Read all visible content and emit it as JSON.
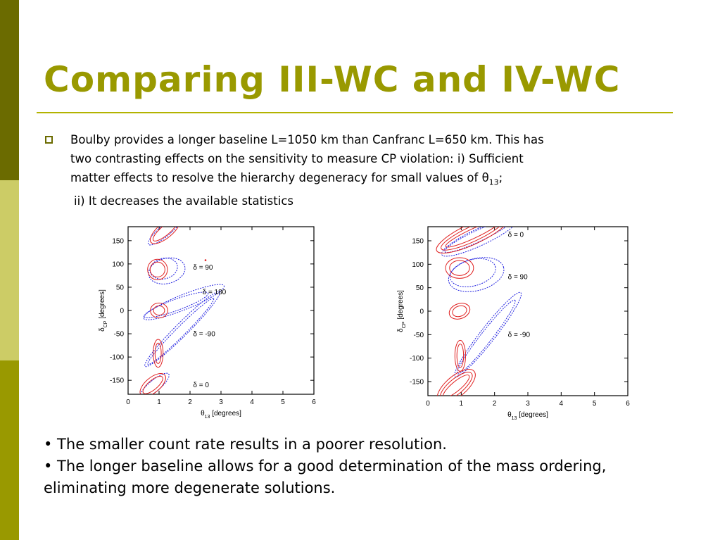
{
  "slide": {
    "title": "Comparing III-WC and IV-WC",
    "bullet": {
      "line1": "Boulby provides a longer baseline L=1050 km than Canfranc L=650 km. This has",
      "line2": "two contrasting effects on the sensitivity to measure CP violation: i) Sufficient",
      "line3_main": "matter effects to resolve the hierarchy degeneracy for small values of θ",
      "line3_sub": "13",
      "line3_end": ";",
      "line4": "ii) It decreases the available statistics"
    },
    "notes": [
      "• The smaller count rate results in a poorer resolution.",
      "•  The longer baseline allows for a good determination of the mass ordering,",
      "eliminating more degenerate solutions."
    ],
    "colors": {
      "accent": "#999900",
      "sidebar_dark": "#6b6b00",
      "sidebar_light": "#cccc66",
      "contour_red": "#e02020",
      "contour_blue": "#2020e0"
    }
  },
  "chart_data": [
    {
      "type": "contour",
      "xlabel_main": "θ",
      "xlabel_sub": "13",
      "xlabel_unit": " [degrees]",
      "ylabel_main": "δ",
      "ylabel_sub": "CP",
      "ylabel_unit": " [degrees]",
      "xlim": [
        0,
        6
      ],
      "ylim": [
        -180,
        180
      ],
      "xticks": [
        0,
        1,
        2,
        3,
        4,
        5,
        6
      ],
      "yticks": [
        150,
        100,
        50,
        0,
        -50,
        -100,
        -150
      ],
      "annotations": [
        {
          "text": "δ = 90",
          "x": 2.1,
          "y": 88
        },
        {
          "text": "δ = 180",
          "x": 2.4,
          "y": 35
        },
        {
          "text": "δ = -90",
          "x": 2.1,
          "y": -55
        },
        {
          "text": "δ = 0",
          "x": 2.1,
          "y": -165
        }
      ],
      "red_contours": [
        {
          "cx": 0.95,
          "cy": 88,
          "rx": 0.24,
          "ry": 16,
          "rot": 0
        },
        {
          "cx": 0.95,
          "cy": 88,
          "rx": 0.32,
          "ry": 22,
          "rot": 0
        },
        {
          "cx": 1.0,
          "cy": 0,
          "rx": 0.18,
          "ry": 10,
          "rot": 0
        },
        {
          "cx": 1.0,
          "cy": 0,
          "rx": 0.28,
          "ry": 16,
          "rot": 0
        },
        {
          "cx": 0.97,
          "cy": -92,
          "rx": 0.1,
          "ry": 22,
          "rot": 0
        },
        {
          "cx": 0.97,
          "cy": -92,
          "rx": 0.16,
          "ry": 30,
          "rot": 0
        },
        {
          "cx": 1.2,
          "cy": 172,
          "rx": 0.5,
          "ry": 10,
          "rot": -40
        },
        {
          "cx": 1.2,
          "cy": 172,
          "rx": 0.6,
          "ry": 16,
          "rot": -40
        },
        {
          "cx": 0.8,
          "cy": -160,
          "rx": 0.4,
          "ry": 10,
          "rot": -40
        },
        {
          "cx": 0.8,
          "cy": -160,
          "rx": 0.5,
          "ry": 16,
          "rot": -40
        }
      ],
      "blue_contours": [
        {
          "cx": 1.15,
          "cy": 90,
          "rx": 0.45,
          "ry": 22,
          "rot": -15
        },
        {
          "cx": 1.25,
          "cy": 85,
          "rx": 0.6,
          "ry": 27,
          "rot": -15
        },
        {
          "cx": 1.55,
          "cy": 12,
          "rx": 1.1,
          "ry": 12,
          "rot": -20
        },
        {
          "cx": 1.8,
          "cy": 18,
          "rx": 1.4,
          "ry": 16,
          "rot": -22
        },
        {
          "cx": 1.7,
          "cy": -45,
          "rx": 1.5,
          "ry": 10,
          "rot": -45
        },
        {
          "cx": 1.75,
          "cy": -40,
          "rx": 1.7,
          "ry": 14,
          "rot": -45
        },
        {
          "cx": 1.2,
          "cy": 172,
          "rx": 0.7,
          "ry": 12,
          "rot": -40
        },
        {
          "cx": 0.85,
          "cy": -162,
          "rx": 0.6,
          "ry": 12,
          "rot": -40
        }
      ],
      "markers": [
        {
          "x": 2.5,
          "y": 108
        }
      ]
    },
    {
      "type": "contour",
      "xlabel_main": "θ",
      "xlabel_sub": "13",
      "xlabel_unit": " [degrees]",
      "ylabel_main": "δ",
      "ylabel_sub": "CP",
      "ylabel_unit": " [degrees]",
      "xlim": [
        0,
        6
      ],
      "ylim": [
        -180,
        180
      ],
      "xticks": [
        0,
        1,
        2,
        3,
        4,
        5,
        6
      ],
      "yticks": [
        150,
        100,
        50,
        0,
        -50,
        -100,
        -150
      ],
      "annotations": [
        {
          "text": "δ = 0",
          "x": 2.4,
          "y": 158
        },
        {
          "text": "δ = 90",
          "x": 2.4,
          "y": 68
        },
        {
          "text": "δ = -90",
          "x": 2.4,
          "y": -55
        }
      ],
      "red_contours": [
        {
          "cx": 1.35,
          "cy": 165,
          "rx": 0.9,
          "ry": 10,
          "rot": -25
        },
        {
          "cx": 1.35,
          "cy": 165,
          "rx": 1.05,
          "ry": 16,
          "rot": -25
        },
        {
          "cx": 1.35,
          "cy": 165,
          "rx": 1.2,
          "ry": 22,
          "rot": -25
        },
        {
          "cx": 0.95,
          "cy": 92,
          "rx": 0.3,
          "ry": 16,
          "rot": 0
        },
        {
          "cx": 0.95,
          "cy": 92,
          "rx": 0.42,
          "ry": 22,
          "rot": 0
        },
        {
          "cx": 0.95,
          "cy": 0,
          "rx": 0.22,
          "ry": 11,
          "rot": -20
        },
        {
          "cx": 0.95,
          "cy": 0,
          "rx": 0.32,
          "ry": 16,
          "rot": -20
        },
        {
          "cx": 0.97,
          "cy": -95,
          "rx": 0.1,
          "ry": 25,
          "rot": 0
        },
        {
          "cx": 0.97,
          "cy": -95,
          "rx": 0.16,
          "ry": 33,
          "rot": 0
        },
        {
          "cx": 0.85,
          "cy": -160,
          "rx": 0.5,
          "ry": 10,
          "rot": -40
        },
        {
          "cx": 0.85,
          "cy": -160,
          "rx": 0.6,
          "ry": 16,
          "rot": -40
        },
        {
          "cx": 0.85,
          "cy": -160,
          "rx": 0.7,
          "ry": 22,
          "rot": -40
        }
      ],
      "blue_contours": [
        {
          "cx": 1.5,
          "cy": 160,
          "rx": 1.1,
          "ry": 12,
          "rot": -25
        },
        {
          "cx": 1.55,
          "cy": 158,
          "rx": 1.25,
          "ry": 18,
          "rot": -25
        },
        {
          "cx": 1.35,
          "cy": 82,
          "rx": 0.7,
          "ry": 28,
          "rot": -15
        },
        {
          "cx": 1.45,
          "cy": 78,
          "rx": 0.85,
          "ry": 34,
          "rot": -15
        },
        {
          "cx": 1.75,
          "cy": -55,
          "rx": 1.4,
          "ry": 12,
          "rot": -52
        },
        {
          "cx": 1.8,
          "cy": -50,
          "rx": 1.6,
          "ry": 16,
          "rot": -52
        }
      ],
      "markers": []
    }
  ]
}
